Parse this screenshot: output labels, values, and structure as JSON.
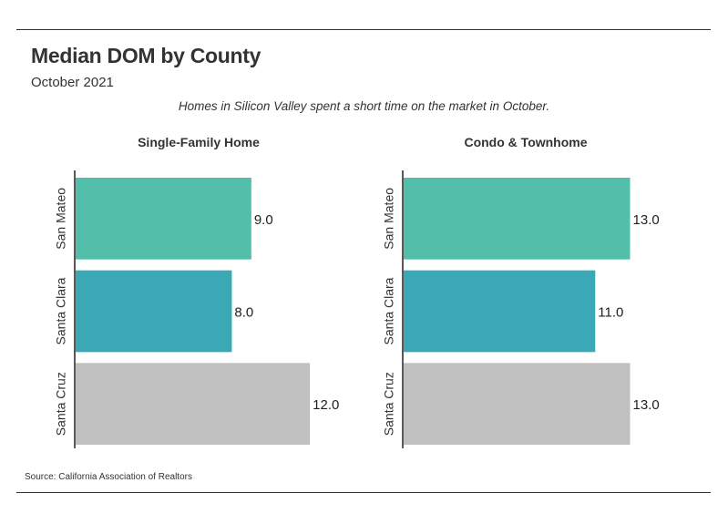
{
  "header": {
    "title": "Median DOM by County",
    "subtitle": "October 2021",
    "caption": "Homes in Silicon Valley spent a short time on the market in October."
  },
  "footer": {
    "source": "Source:  California Association of Realtors"
  },
  "chart_data": [
    {
      "type": "bar",
      "orientation": "horizontal",
      "title": "Single-Family Home",
      "categories": [
        "San Mateo",
        "Santa Clara",
        "Santa Cruz"
      ],
      "values": [
        9.0,
        8.0,
        12.0
      ],
      "labels": [
        "9.0",
        "8.0",
        "12.0"
      ],
      "colors": [
        "#52bfaa",
        "#3aa8b5",
        "#c0c0c0"
      ],
      "xlim": [
        0,
        12.6
      ],
      "grid": false
    },
    {
      "type": "bar",
      "orientation": "horizontal",
      "title": "Condo & Townhome",
      "categories": [
        "San Mateo",
        "Santa Clara",
        "Santa Cruz"
      ],
      "values": [
        13.0,
        11.0,
        13.0
      ],
      "labels": [
        "13.0",
        "11.0",
        "13.0"
      ],
      "colors": [
        "#52bfaa",
        "#3aa8b5",
        "#c0c0c0"
      ],
      "xlim": [
        0,
        13.6
      ],
      "grid": false
    }
  ]
}
